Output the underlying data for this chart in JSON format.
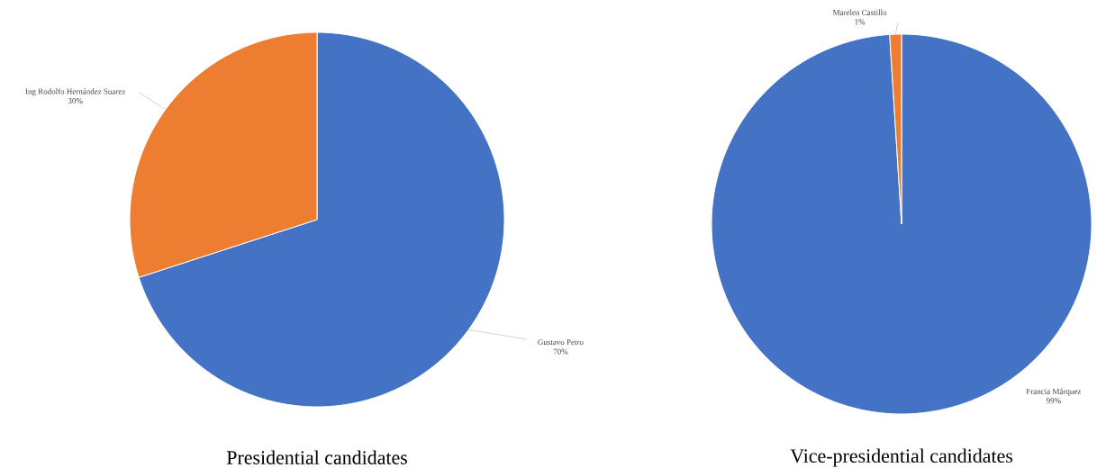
{
  "chart_data": [
    {
      "type": "pie",
      "title": "Presidential candidates",
      "categories": [
        "Gustavo Petro",
        "Ing Rodolfo Hernández Suarez"
      ],
      "values": [
        70,
        30
      ],
      "colors": [
        "#4472c4",
        "#ed7d31"
      ],
      "value_labels": [
        "70%",
        "30%"
      ]
    },
    {
      "type": "pie",
      "title": "Vice-presidential candidates",
      "categories": [
        "Francia Márquez",
        "Marelen Castillo"
      ],
      "values": [
        99,
        1
      ],
      "colors": [
        "#4472c4",
        "#ed7d31"
      ],
      "value_labels": [
        "99%",
        "1%"
      ]
    }
  ]
}
